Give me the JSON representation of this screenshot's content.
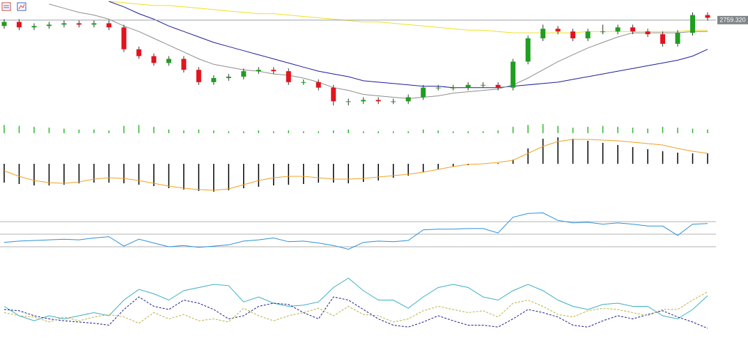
{
  "chart_data": [
    {
      "type": "candlestick",
      "up_color": "#1f9e1f",
      "down_color": "#e3141e",
      "ylim": [
        2690,
        2774
      ],
      "open": [
        2755,
        2758,
        2754,
        2755,
        2756,
        2757,
        2756,
        2757,
        2754,
        2738,
        2733,
        2728,
        2731,
        2723,
        2714,
        2717,
        2718,
        2722,
        2723,
        2722,
        2714,
        2714,
        2710,
        2700,
        2700,
        2701,
        2700,
        2700,
        2703,
        2710,
        2710,
        2710,
        2712,
        2712,
        2710,
        2729,
        2746,
        2753,
        2751,
        2746,
        2751,
        2751,
        2754,
        2751,
        2749,
        2742,
        2750,
        2763
      ],
      "high": [
        2760,
        2760,
        2757,
        2758,
        2759,
        2759,
        2759,
        2759,
        2756,
        2740,
        2735,
        2733,
        2733,
        2725,
        2719,
        2720,
        2724,
        2725,
        2725,
        2724,
        2716,
        2716,
        2712,
        2702,
        2703,
        2703,
        2702,
        2705,
        2712,
        2712,
        2712,
        2714,
        2714,
        2714,
        2731,
        2748,
        2756,
        2755,
        2753,
        2753,
        2756,
        2756,
        2756,
        2753,
        2751,
        2752,
        2765,
        2765
      ],
      "low": [
        2753,
        2752,
        2752,
        2753,
        2754,
        2754,
        2754,
        2752,
        2736,
        2731,
        2726,
        2726,
        2721,
        2712,
        2712,
        2715,
        2716,
        2720,
        2720,
        2712,
        2712,
        2708,
        2697,
        2697,
        2698,
        2698,
        2698,
        2698,
        2701,
        2708,
        2708,
        2708,
        2710,
        2708,
        2708,
        2727,
        2744,
        2749,
        2744,
        2744,
        2749,
        2749,
        2749,
        2747,
        2740,
        2740,
        2748,
        2759
      ],
      "close": [
        2758,
        2754,
        2755,
        2756,
        2757,
        2756,
        2757,
        2754,
        2738,
        2733,
        2728,
        2731,
        2723,
        2714,
        2717,
        2718,
        2722,
        2723,
        2722,
        2714,
        2714,
        2710,
        2700,
        2700,
        2701,
        2700,
        2700,
        2703,
        2710,
        2710,
        2710,
        2712,
        2712,
        2710,
        2729,
        2746,
        2753,
        2751,
        2746,
        2751,
        2751,
        2754,
        2751,
        2749,
        2742,
        2750,
        2763,
        2761
      ],
      "series": [
        {
          "color": "#f0e020",
          "values": [
            null,
            null,
            null,
            null,
            null,
            null,
            null,
            2773,
            2772,
            2771,
            2770,
            2770,
            2769,
            2768,
            2767,
            2766,
            2765,
            2764,
            2764,
            2763,
            2762,
            2761,
            2760,
            2759,
            2758,
            2758,
            2757,
            2756,
            2755,
            2754,
            2753,
            2752,
            2752,
            2751,
            2750,
            2750,
            2750,
            2750,
            2750,
            2751,
            2751,
            2751,
            2751,
            2751,
            2751,
            2751,
            2752,
            2752
          ]
        },
        {
          "color": "#1a1a9a",
          "values": [
            null,
            null,
            null,
            null,
            null,
            null,
            null,
            2773,
            2769,
            2764,
            2760,
            2755,
            2751,
            2747,
            2743,
            2740,
            2737,
            2734,
            2731,
            2728,
            2725,
            2722,
            2720,
            2718,
            2715,
            2714,
            2713,
            2712,
            2711,
            2711,
            2710,
            2710,
            2710,
            2710,
            2711,
            2712,
            2713,
            2714,
            2716,
            2718,
            2720,
            2722,
            2724,
            2726,
            2728,
            2730,
            2733,
            2738
          ]
        },
        {
          "color": "#8c8c8c",
          "values": [
            null,
            null,
            null,
            2771,
            2768,
            2765,
            2763,
            2760,
            2755,
            2751,
            2746,
            2741,
            2736,
            2731,
            2727,
            2725,
            2723,
            2722,
            2720,
            2719,
            2717,
            2714,
            2710,
            2708,
            2705,
            2704,
            2703,
            2702,
            2703,
            2704,
            2706,
            2707,
            2708,
            2709,
            2712,
            2717,
            2723,
            2729,
            2734,
            2739,
            2743,
            2747,
            2750,
            2750,
            2750,
            2750,
            2751,
            2751
          ]
        }
      ],
      "last_price": {
        "value": 2759.32,
        "label": "2759.320"
      }
    },
    {
      "type": "bar",
      "color": "#2fb52f",
      "ylim": [
        0,
        100
      ],
      "values": [
        90,
        80,
        70,
        60,
        50,
        40,
        40,
        30,
        80,
        90,
        70,
        40,
        30,
        40,
        30,
        20,
        20,
        30,
        20,
        30,
        20,
        20,
        30,
        40,
        20,
        20,
        20,
        20,
        40,
        30,
        20,
        20,
        20,
        30,
        70,
        90,
        100,
        80,
        60,
        70,
        80,
        70,
        60,
        50,
        70,
        60,
        50,
        40
      ]
    },
    {
      "type": "macd",
      "color": "#000000",
      "ylim": [
        -45,
        40
      ],
      "values": [
        -27,
        -29,
        -31,
        -31,
        -30,
        -28,
        -27,
        -27,
        -28,
        -30,
        -32,
        -35,
        -37,
        -39,
        -40,
        -38,
        -35,
        -33,
        -31,
        -30,
        -29,
        -27,
        -27,
        -28,
        -26,
        -24,
        -20,
        -17,
        -12,
        -8,
        -4,
        -2,
        0,
        1,
        6,
        22,
        36,
        38,
        36,
        33,
        30,
        27,
        24,
        21,
        18,
        16,
        15,
        15
      ],
      "series": [
        {
          "color": "#f0a020",
          "values": [
            -10,
            -18,
            -24,
            -27,
            -28,
            -26,
            -22,
            -20,
            -21,
            -24,
            -28,
            -32,
            -35,
            -37,
            -38,
            -36,
            -30,
            -24,
            -20,
            -18,
            -18,
            -20,
            -22,
            -22,
            -21,
            -19,
            -17,
            -15,
            -12,
            -8,
            -4,
            -1,
            0,
            2,
            5,
            15,
            25,
            32,
            35,
            35,
            34,
            33,
            31,
            29,
            27,
            22,
            18,
            15
          ]
        }
      ]
    },
    {
      "type": "line",
      "ylim": [
        0,
        100
      ],
      "levels": [
        70,
        50,
        30
      ],
      "series": [
        {
          "color": "#2a8fd8",
          "values": [
            37,
            39,
            40,
            41,
            42,
            41,
            44,
            46,
            31,
            42,
            36,
            30,
            32,
            29,
            31,
            33,
            39,
            41,
            44,
            38,
            39,
            36,
            32,
            26,
            37,
            39,
            38,
            40,
            57,
            58,
            58,
            59,
            59,
            52,
            77,
            83,
            84,
            72,
            68,
            69,
            66,
            68,
            66,
            63,
            63,
            48,
            66,
            67
          ]
        }
      ]
    },
    {
      "type": "line",
      "ylim": [
        0,
        100
      ],
      "series": [
        {
          "color": "#3aaec0",
          "values": [
            45,
            30,
            22,
            30,
            25,
            30,
            35,
            30,
            55,
            72,
            65,
            55,
            70,
            75,
            80,
            78,
            52,
            60,
            50,
            45,
            47,
            52,
            75,
            90,
            70,
            55,
            55,
            42,
            60,
            75,
            80,
            75,
            60,
            55,
            70,
            80,
            70,
            55,
            45,
            40,
            48,
            50,
            45,
            45,
            30,
            25,
            40,
            62
          ]
        },
        {
          "color": "#1a1a8a",
          "dashed": true,
          "values": [
            40,
            38,
            30,
            25,
            22,
            20,
            18,
            15,
            40,
            60,
            45,
            40,
            55,
            50,
            40,
            25,
            30,
            45,
            50,
            48,
            35,
            25,
            60,
            55,
            40,
            25,
            15,
            12,
            20,
            30,
            22,
            15,
            15,
            12,
            25,
            40,
            35,
            28,
            15,
            12,
            22,
            30,
            25,
            32,
            38,
            28,
            20,
            10
          ]
        },
        {
          "color": "#b8b040",
          "dashed": true,
          "values": [
            35,
            30,
            28,
            20,
            28,
            22,
            28,
            32,
            28,
            18,
            35,
            25,
            32,
            22,
            25,
            20,
            42,
            30,
            22,
            30,
            35,
            42,
            30,
            45,
            32,
            30,
            20,
            25,
            38,
            45,
            40,
            35,
            38,
            28,
            50,
            55,
            45,
            32,
            28,
            38,
            42,
            40,
            35,
            30,
            40,
            40,
            55,
            68
          ]
        }
      ]
    }
  ]
}
